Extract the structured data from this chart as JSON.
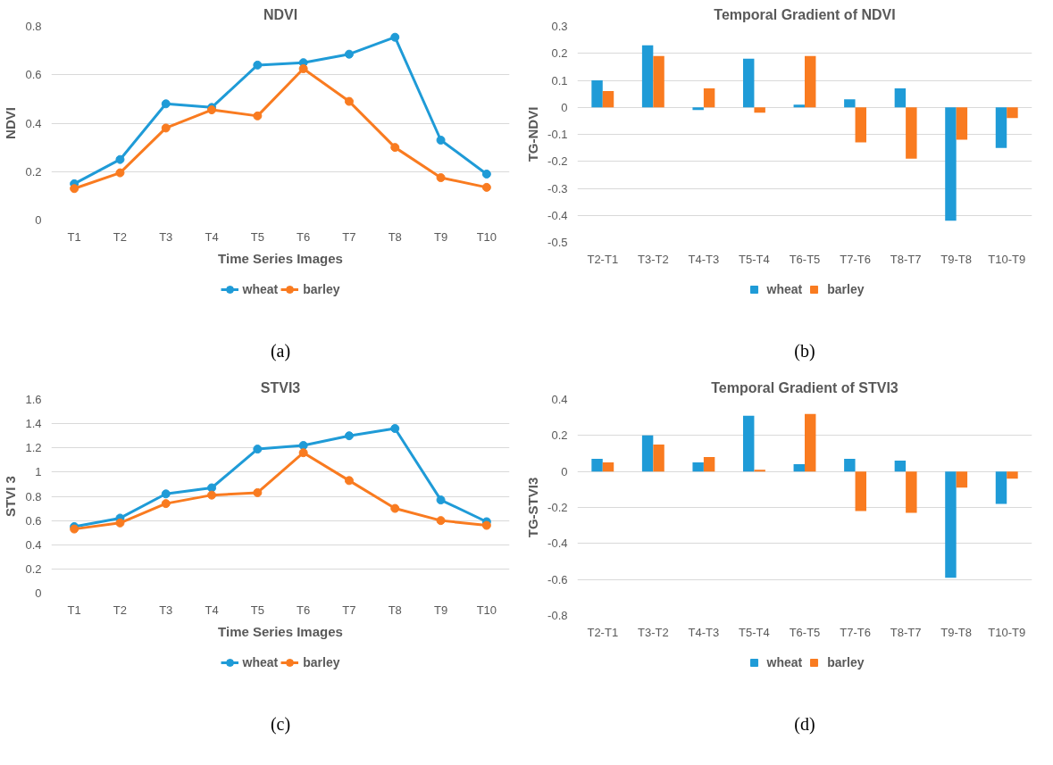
{
  "chart_data": [
    {
      "type": "line",
      "title": "NDVI",
      "xlabel": "Time Series Images",
      "ylabel": "NDVI",
      "categories": [
        "T1",
        "T2",
        "T3",
        "T4",
        "T5",
        "T6",
        "T7",
        "T8",
        "T9",
        "T10"
      ],
      "series": [
        {
          "name": "wheat",
          "color": "#1f9bd7",
          "values": [
            0.15,
            0.25,
            0.48,
            0.465,
            0.64,
            0.65,
            0.685,
            0.755,
            0.33,
            0.19
          ]
        },
        {
          "name": "barley",
          "color": "#f97b20",
          "values": [
            0.13,
            0.195,
            0.38,
            0.455,
            0.43,
            0.625,
            0.49,
            0.3,
            0.175,
            0.135
          ]
        }
      ],
      "ylim": [
        0,
        0.8
      ],
      "yticks": [
        0,
        0.2,
        0.4,
        0.6,
        0.8
      ],
      "grid": "y",
      "legend": "bottom",
      "marker": "circle",
      "line_style": "solid",
      "annotations": [
        "(a)"
      ]
    },
    {
      "type": "bar",
      "title": "Temporal Gradient of NDVI",
      "ylabel": "TG-NDVI",
      "categories": [
        "T2-T1",
        "T3-T2",
        "T4-T3",
        "T5-T4",
        "T6-T5",
        "T7-T6",
        "T8-T7",
        "T9-T8",
        "T10-T9"
      ],
      "series": [
        {
          "name": "wheat",
          "color": "#1f9bd7",
          "values": [
            0.1,
            0.23,
            -0.01,
            0.18,
            0.01,
            0.03,
            0.07,
            -0.42,
            -0.15
          ]
        },
        {
          "name": "barley",
          "color": "#f97b20",
          "values": [
            0.06,
            0.19,
            0.07,
            -0.02,
            0.19,
            -0.13,
            -0.19,
            -0.12,
            -0.04
          ]
        }
      ],
      "ylim": [
        -0.5,
        0.3
      ],
      "yticks": [
        -0.5,
        -0.4,
        -0.3,
        -0.2,
        -0.1,
        0,
        0.1,
        0.2,
        0.3
      ],
      "grid": "y",
      "legend": "bottom",
      "annotations": [
        "(b)"
      ]
    },
    {
      "type": "line",
      "title": "STVI3",
      "xlabel": "Time Series Images",
      "ylabel": "STVI 3",
      "categories": [
        "T1",
        "T2",
        "T3",
        "T4",
        "T5",
        "T6",
        "T7",
        "T8",
        "T9",
        "T10"
      ],
      "series": [
        {
          "name": "wheat",
          "color": "#1f9bd7",
          "values": [
            0.55,
            0.62,
            0.82,
            0.87,
            1.19,
            1.22,
            1.3,
            1.36,
            0.77,
            0.59
          ]
        },
        {
          "name": "barley",
          "color": "#f97b20",
          "values": [
            0.53,
            0.58,
            0.74,
            0.81,
            0.83,
            1.16,
            0.93,
            0.7,
            0.6,
            0.56
          ]
        }
      ],
      "ylim": [
        0,
        1.6
      ],
      "yticks": [
        0,
        0.2,
        0.4,
        0.6,
        0.8,
        1,
        1.2,
        1.4,
        1.6
      ],
      "grid": "y",
      "legend": "bottom",
      "marker": "circle",
      "line_style": "solid",
      "annotations": [
        "(c)"
      ]
    },
    {
      "type": "bar",
      "title": "Temporal Gradient of STVI3",
      "ylabel": "TG-STVI3",
      "categories": [
        "T2-T1",
        "T3-T2",
        "T4-T3",
        "T5-T4",
        "T6-T5",
        "T7-T6",
        "T8-T7",
        "T9-T8",
        "T10-T9"
      ],
      "series": [
        {
          "name": "wheat",
          "color": "#1f9bd7",
          "values": [
            0.07,
            0.2,
            0.05,
            0.31,
            0.04,
            0.07,
            0.06,
            -0.59,
            -0.18
          ]
        },
        {
          "name": "barley",
          "color": "#f97b20",
          "values": [
            0.05,
            0.15,
            0.08,
            0.01,
            0.32,
            -0.22,
            -0.23,
            -0.09,
            -0.04
          ]
        }
      ],
      "ylim": [
        -0.8,
        0.4
      ],
      "yticks": [
        -0.8,
        -0.6,
        -0.4,
        -0.2,
        0,
        0.2,
        0.4
      ],
      "grid": "y",
      "legend": "bottom",
      "annotations": [
        "(d)"
      ]
    }
  ]
}
